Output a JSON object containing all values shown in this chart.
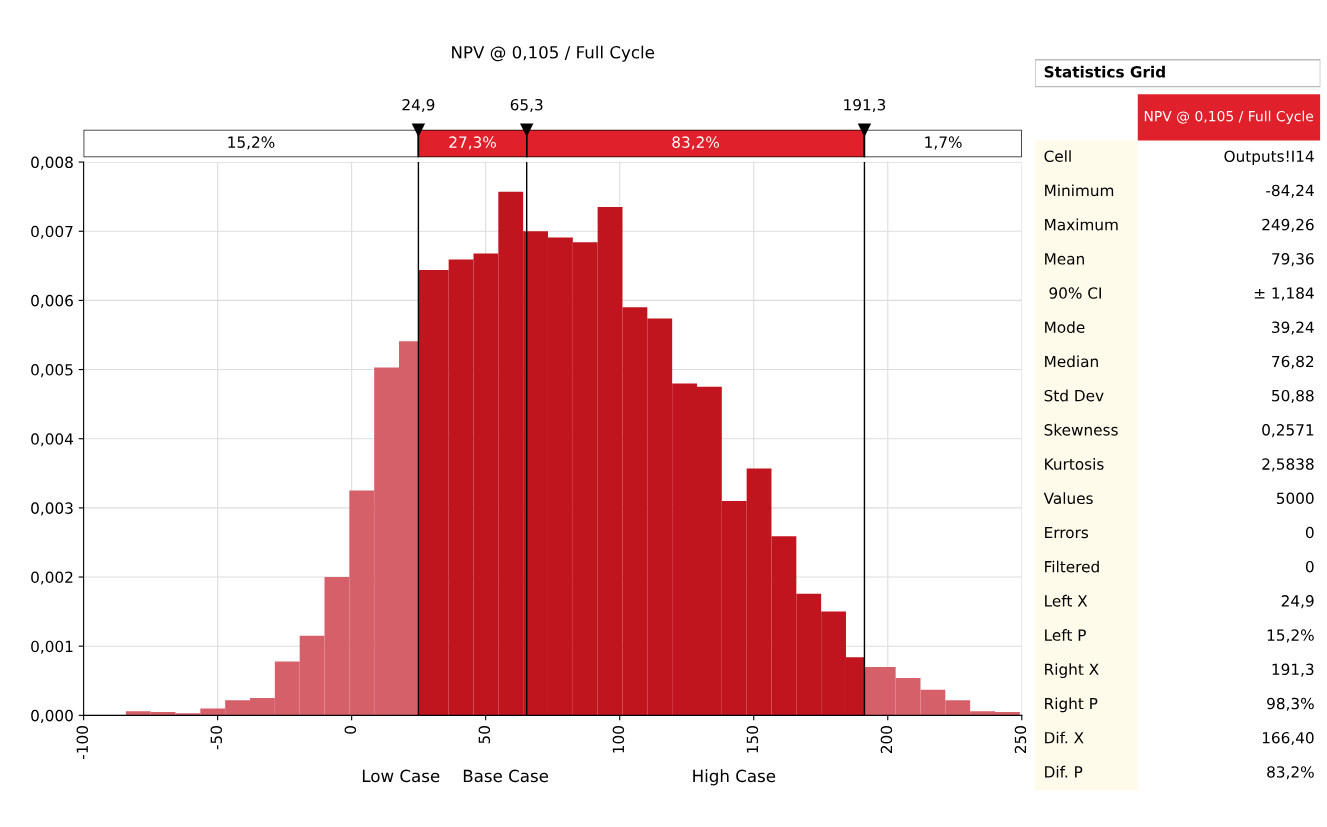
{
  "chart_data": [
    {
      "type": "histogram",
      "title": "NPV @ 0,105 / Full Cycle",
      "bins": [
        -84.24,
        -74.98,
        -65.71,
        -56.45,
        -47.19,
        -37.92,
        -28.66,
        -19.39,
        -10.13,
        -0.87,
        8.4,
        17.66,
        24.9,
        36.19,
        45.45,
        54.72,
        63.98,
        73.24,
        82.51,
        91.77,
        101.04,
        110.3,
        119.57,
        128.83,
        138.09,
        147.36,
        156.62,
        165.89,
        175.15,
        184.41,
        191.3,
        202.94,
        212.21,
        221.47,
        230.73,
        240.0,
        249.26
      ],
      "values": [
        6e-05,
        5e-05,
        3e-05,
        0.0001,
        0.00022,
        0.00025,
        0.00078,
        0.00115,
        0.002,
        0.00325,
        0.00503,
        0.00541,
        0.00644,
        0.00659,
        0.00668,
        0.00757,
        0.007,
        0.00691,
        0.00684,
        0.00735,
        0.0059,
        0.00574,
        0.0048,
        0.00475,
        0.0031,
        0.00357,
        0.00259,
        0.00176,
        0.0015,
        0.00084,
        0.0007,
        0.00054,
        0.00037,
        0.00022,
        6e-05,
        5e-05
      ],
      "colors": [
        "#d6606a",
        "#d6606a",
        "#d6606a",
        "#d6606a",
        "#d6606a",
        "#d6606a",
        "#d6606a",
        "#d6606a",
        "#d6606a",
        "#d6606a",
        "#d6606a",
        "#d6606a",
        "#c0141e",
        "#c0141e",
        "#c0141e",
        "#c0141e",
        "#c0141e",
        "#c0141e",
        "#c0141e",
        "#c0141e",
        "#c0141e",
        "#c0141e",
        "#c0141e",
        "#c0141e",
        "#c0141e",
        "#c0141e",
        "#c0141e",
        "#c0141e",
        "#c0141e",
        "#c0141e",
        "#d6606a",
        "#d6606a",
        "#d6606a",
        "#d6606a",
        "#d6606a",
        "#d6606a"
      ],
      "xlim": [
        -100,
        250
      ],
      "xticks": [
        -100,
        -50,
        0,
        50,
        100,
        150,
        200,
        250
      ],
      "ylim": [
        0,
        0.008
      ],
      "yticks": [
        {
          "value": 0,
          "label": "0,000"
        },
        {
          "value": 0.001,
          "label": "0,001"
        },
        {
          "value": 0.002,
          "label": "0,002"
        },
        {
          "value": 0.003,
          "label": "0,003"
        },
        {
          "value": 0.004,
          "label": "0,004"
        },
        {
          "value": 0.005,
          "label": "0,005"
        },
        {
          "value": 0.006,
          "label": "0,006"
        },
        {
          "value": 0.007,
          "label": "0,007"
        },
        {
          "value": 0.008,
          "label": "0,008"
        }
      ],
      "grid": true,
      "ref_lines": [
        {
          "axis": "x",
          "value": 24.9,
          "label": "24,9"
        },
        {
          "axis": "x",
          "value": 65.3,
          "label": "65,3"
        },
        {
          "axis": "x",
          "value": 191.3,
          "label": "191,3"
        }
      ],
      "annotations": [
        "15,2%",
        "27,3%",
        "83,2%",
        "1,7%",
        "Low Case",
        "Base Case",
        "High Case"
      ]
    },
    {
      "type": "other",
      "title": "Statistics Grid",
      "subtitle": "NPV @ 0,105 / Full Cycle",
      "categories": [
        "Cell",
        "Minimum",
        "Maximum",
        "Mean",
        " 90% CI",
        "Mode",
        "Median",
        "Std Dev",
        "Skewness",
        "Kurtosis",
        "Values",
        "Errors",
        "Filtered",
        "Left X",
        "Left P",
        "Right X",
        "Right P",
        "Dif. X",
        "Dif. P"
      ],
      "value_labels": [
        "Outputs!I14",
        "-84,24",
        "249,26",
        "79,36",
        "± 1,184",
        "39,24",
        "76,82",
        "50,88",
        "0,2571",
        "2,5838",
        "5000",
        "0",
        "0",
        "24,9",
        "15,2%",
        "191,3",
        "98,3%",
        "166,40",
        "83,2%"
      ]
    }
  ]
}
